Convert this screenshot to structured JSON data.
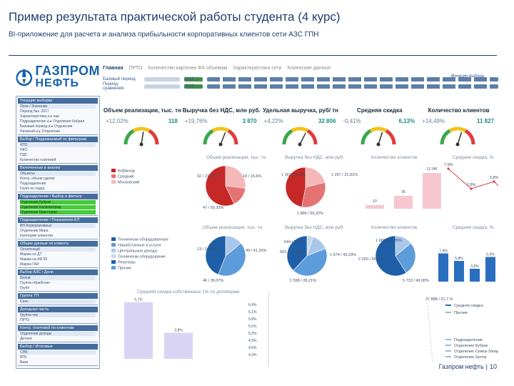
{
  "slide": {
    "title": "Пример результата практической работы студента (4 курс)",
    "subtitle": "BI-приложение для расчета и анализа прибыльности корпоративных клиентов сети АЗС ГПН",
    "footer_company": "Газпром нефть",
    "footer_page": "10"
  },
  "logo": {
    "line1": "ГАЗПРОМ",
    "line2": "НЕФТЬ"
  },
  "nav": {
    "tabs": [
      "Главная",
      "ПРТО",
      "Количество карточек ФА объемам",
      "Характеристика сети",
      "Клиенские данные"
    ],
    "compare_link": "Функции выбора"
  },
  "periods": [
    {
      "label": "Базовый период",
      "value": "2016"
    },
    {
      "label": "Период сравнения",
      "value": "2015"
    }
  ],
  "side_panel": {
    "sections": [
      {
        "head": "Текущие выборки",
        "lines": [
          "Поле / Значение",
          "Период баз. 2017",
          "Характеристика ∆ ▸ кар",
          "Подразделение ∆ ▸ Отделение Кабрал",
          "Базовый период ∆ ▸ Отделение",
          "Начиный ∆ ▸ Отделение"
        ]
      },
      {
        "head": "Выбор / Подражаемый по фильтрам",
        "lines": [
          "ИТО",
          "НКО",
          "ПДС",
          "Количество платежей"
        ]
      },
      {
        "head": "Включенные в анализ",
        "lines": [
          "Объекты",
          "Контр. объем сделки",
          "Подразделение",
          "Групп по подгр."
        ]
      },
      {
        "head": "Подразделение / Выбор и фильтр",
        "green": [
          "Отделение Кубрак",
          "Отделение Калининград",
          "Отделение Краснодар"
        ]
      },
      {
        "head": "Подразделение / Показатели ЕП",
        "lines": [
          "ВН Корпоративных",
          "Отделение Мира",
          "Категория клиентов"
        ]
      },
      {
        "head": "Общие данные по клиенту",
        "lines": [
          "Остаточный",
          "Маржа на ДТ",
          "Маржа на АИ 95",
          "Маржа ГАИ"
        ]
      },
      {
        "head": "Выбор АЗС / Доля",
        "lines": [
          "Валов",
          "Группа обработан",
          "Групп"
        ]
      },
      {
        "head": "Группа ТП",
        "lines": [
          "Сенс"
        ]
      },
      {
        "head": "Доходная часть",
        "lines": [
          "Группа чек",
          "ПРТО"
        ]
      },
      {
        "head": "Контр. платежей по клиентам",
        "lines": [
          "Отделение доходы",
          "Детали"
        ]
      },
      {
        "head": "Выбор / Итоговые",
        "lines": [
          "СНБ",
          "ВТБ",
          "Визи"
        ]
      }
    ]
  },
  "kpis": [
    {
      "title": "Объем реализации, тыс. тн",
      "change": "+12,02%",
      "value": "118",
      "level": 0.55,
      "color": "#e03c3c"
    },
    {
      "title": "Выручка без НДС, млн руб.",
      "change": "+19,76%",
      "value": "3 870",
      "level": 0.62,
      "color": "#e03c3c"
    },
    {
      "title": "Удельная выручка, руб/ тн",
      "change": "+4,22%",
      "value": "32 806",
      "level": 0.65,
      "color": "#e03c3c"
    },
    {
      "title": "Средняя скидка",
      "change": "-0,41%",
      "value": "6,13%",
      "level": 0.6,
      "color": "#e03c3c"
    },
    {
      "title": "Количество клиентов",
      "change": "+14,49%",
      "value": "11 827",
      "level": 0.6,
      "color": "#e03c3c"
    }
  ],
  "row1": {
    "titles": [
      "Объем реализации, тыс. тн",
      "Выручка без НДС, млн руб.",
      "Количество клиентов",
      "Средняя скидка, %"
    ],
    "legend": [
      "Кофмнод",
      "Средний",
      "Московский"
    ],
    "pie1_labels": [
      "32 / 27,07%",
      "18 / 15,6%",
      "47 / 59,33%"
    ],
    "pie2_labels": [
      "1 162 / 20,6%",
      "1 257 / 31,81%",
      "1 896 / 59,32%"
    ],
    "bars": [
      {
        "label": "10",
        "value": 10
      },
      {
        "label": "36",
        "value": 36
      },
      {
        "label": "11 246",
        "value": 100
      }
    ],
    "line_labels": [
      "7,9%",
      "2,8%",
      "5,8%",
      "2,4%"
    ]
  },
  "row2": {
    "titles": [
      "Объем реализации, тыс. тн",
      "Выручка без НДС, млн руб.",
      "Количество клиентов",
      "Средняя скидка, %"
    ],
    "legend": [
      "Технически оборудованные",
      "Наработанные в услуги",
      "Центральные доходы",
      "Технически оборудование",
      "Рекуперы",
      "Прочие"
    ],
    "pie1_labels": [
      "13 / 14,01%",
      "49 / 41,20%",
      "46 / 39,07%"
    ],
    "pie2_labels": [
      "644 / 5,1%",
      "563 / 14,01%",
      "1 674 / 43,23%",
      "1 598 / 28,21%"
    ],
    "pie3_labels": [
      "1 688 / 14,25%",
      "2 020 / 26,85%",
      "5 733 / 49,00%"
    ],
    "bars": [
      {
        "label": "7,9%",
        "value": 79
      },
      {
        "label": "5,8%",
        "value": 58
      },
      {
        "label": "3,6%",
        "value": 36
      },
      {
        "label": "6,9%",
        "value": 69
      }
    ]
  },
  "row3": {
    "title": "Средняя скидка собственные 1% по договорам",
    "bars": [
      {
        "label": "6,1%",
        "value": 61
      },
      {
        "label": "2,8%",
        "value": 28
      }
    ],
    "axis": [
      "6,4%",
      "6,1%",
      "5,8%",
      "5,5%",
      "5,2%",
      "4,9%",
      "4,6%",
      "4,3%"
    ],
    "right_top_label": "37 888 / 21,7 %",
    "right_legend_top": [
      "Средняя скидка",
      "Прочие"
    ],
    "right_legend_bottom": [
      "Подразделение",
      "Отделение Кубрак",
      "Отделение Север-Запад",
      "Отделение Центр"
    ]
  },
  "colors": {
    "brand": "#1560ab",
    "pie_red": [
      "#c62828",
      "#e57373",
      "#f5b7b7"
    ],
    "pie_blue": [
      "#1e5fa8",
      "#5d9cdb",
      "#a9c7ea",
      "#c7d6e8"
    ],
    "bar_pink": "#f6c7cf",
    "bar_blue": "#2a6fbf"
  }
}
